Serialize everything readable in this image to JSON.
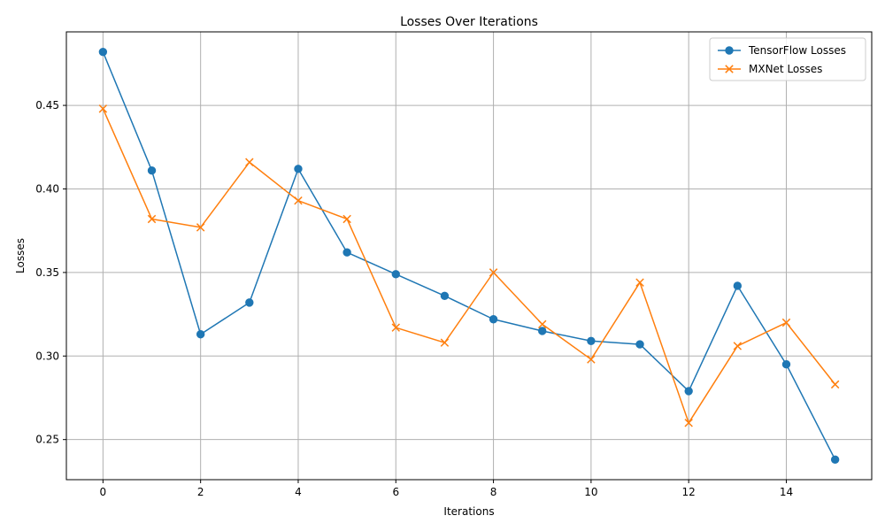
{
  "chart_data": {
    "type": "line",
    "title": "Losses Over Iterations",
    "xlabel": "Iterations",
    "ylabel": "Losses",
    "x": [
      0,
      1,
      2,
      3,
      4,
      5,
      6,
      7,
      8,
      9,
      10,
      11,
      12,
      13,
      14,
      15
    ],
    "xlim": [
      -0.75,
      15.75
    ],
    "ylim": [
      0.226,
      0.494
    ],
    "xticks": [
      0,
      2,
      4,
      6,
      8,
      10,
      12,
      14
    ],
    "yticks": [
      0.25,
      0.3,
      0.35,
      0.4,
      0.45
    ],
    "xtick_labels": [
      "0",
      "2",
      "4",
      "6",
      "8",
      "10",
      "12",
      "14"
    ],
    "ytick_labels": [
      "0.25",
      "0.30",
      "0.35",
      "0.40",
      "0.45"
    ],
    "grid": true,
    "legend_position": "top-right",
    "series": [
      {
        "name": "TensorFlow Losses",
        "color": "#1f77b4",
        "marker": "circle",
        "values": [
          0.482,
          0.411,
          0.313,
          0.332,
          0.412,
          0.362,
          0.349,
          0.336,
          0.322,
          0.315,
          0.309,
          0.307,
          0.279,
          0.342,
          0.295,
          0.238
        ]
      },
      {
        "name": "MXNet Losses",
        "color": "#ff7f0e",
        "marker": "x",
        "values": [
          0.448,
          0.382,
          0.377,
          0.416,
          0.393,
          0.382,
          0.317,
          0.308,
          0.35,
          0.319,
          0.298,
          0.344,
          0.26,
          0.306,
          0.32,
          0.283
        ]
      }
    ]
  }
}
